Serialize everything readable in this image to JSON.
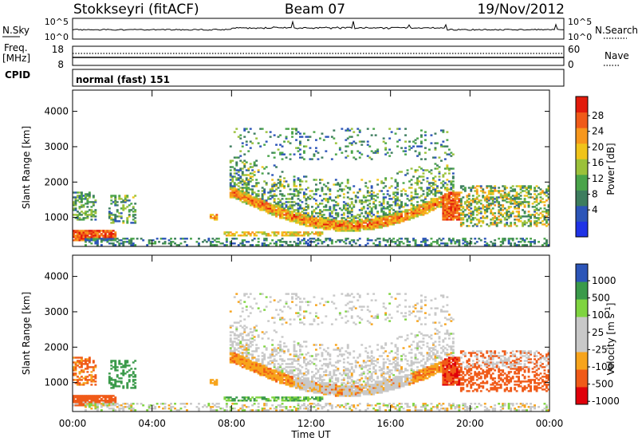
{
  "header": {
    "station": "Stokkseyri (fitACF)",
    "beam": "Beam 07",
    "date": "19/Nov/2012"
  },
  "noise_panel": {
    "left_label": "N.Sky",
    "right_label": "N.Search",
    "left_ticks": [
      "10^5",
      "10^0"
    ],
    "right_ticks": [
      "10^5",
      "10^0"
    ]
  },
  "freq_panel": {
    "left_label_line1": "Freq.",
    "left_label_line2": "[MHz]",
    "right_label": "Nave",
    "left_ticks": [
      "18",
      "8"
    ],
    "right_ticks": [
      "60",
      "0"
    ]
  },
  "cpid": {
    "label": "CPID",
    "text": "normal (fast) 151"
  },
  "colors": {
    "power_scale": [
      "#1f33e6",
      "#2c55b8",
      "#3d7d5e",
      "#4aa44a",
      "#9bc13a",
      "#f0c41a",
      "#f7971c",
      "#f05a18",
      "#e21b0c"
    ],
    "velocity_scale": [
      "#e0000a",
      "#f05a18",
      "#f7a41c",
      "#c8c8c8",
      "#c8c8c8",
      "#7fd440",
      "#3a9a4a",
      "#2c55b8"
    ],
    "ground_scatter": "#c8c8c8"
  },
  "chart_data": [
    {
      "type": "heatmap",
      "name": "power",
      "xlabel": "Time UT",
      "ylabel": "Slant Range [km]",
      "colorbar_label": "Power [dB]",
      "colorbar_ticks": [
        "28",
        "24",
        "20",
        "16",
        "12",
        "8",
        "4"
      ],
      "x_tick_labels": [
        "00:00",
        "04:00",
        "08:00",
        "12:00",
        "16:00",
        "20:00",
        "00:00"
      ],
      "y_tick_labels": [
        "1000",
        "2000",
        "3000",
        "4000"
      ],
      "xlim_hours": [
        0,
        24
      ],
      "ylim_km": [
        180,
        4600
      ],
      "clim_db": [
        0,
        32
      ]
    },
    {
      "type": "heatmap",
      "name": "velocity",
      "xlabel": "Time UT",
      "ylabel": "Slant Range [km]",
      "colorbar_label": "Velocity [m s-1]",
      "colorbar_ticks": [
        "1000",
        "500",
        "100",
        "25",
        "-25",
        "-100",
        "-500",
        "-1000"
      ],
      "x_tick_labels": [
        "00:00",
        "04:00",
        "08:00",
        "12:00",
        "16:00",
        "20:00",
        "00:00"
      ],
      "y_tick_labels": [
        "1000",
        "2000",
        "3000",
        "4000"
      ],
      "xlim_hours": [
        0,
        24
      ],
      "ylim_km": [
        180,
        4600
      ]
    }
  ]
}
